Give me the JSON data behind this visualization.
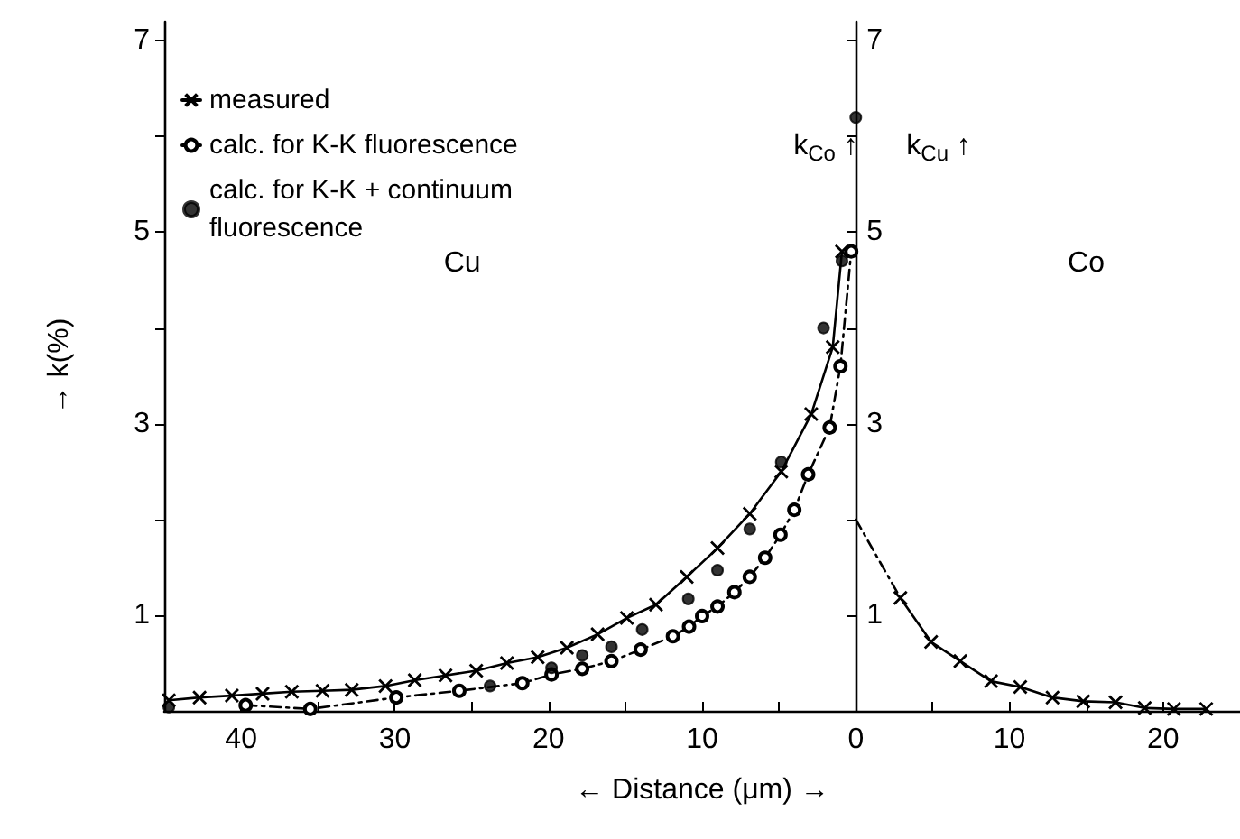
{
  "chart_data": {
    "type": "line",
    "xlabel": "← Distance (μm) →",
    "ylabel": "→ k(%)",
    "xlim": [
      45,
      -25
    ],
    "xticks": [
      {
        "value": 40,
        "label": "40"
      },
      {
        "value": 35,
        "label": null
      },
      {
        "value": 30,
        "label": "30"
      },
      {
        "value": 25,
        "label": null
      },
      {
        "value": 20,
        "label": "20"
      },
      {
        "value": 15,
        "label": null
      },
      {
        "value": 10,
        "label": "10"
      },
      {
        "value": 5,
        "label": null
      },
      {
        "value": 0,
        "label": "0"
      },
      {
        "value": -5,
        "label": null
      },
      {
        "value": -10,
        "label": "10"
      },
      {
        "value": -15,
        "label": null
      },
      {
        "value": -20,
        "label": "20"
      }
    ],
    "ylim": [
      0,
      7.2
    ],
    "yticks": [
      1,
      {
        "value": 2,
        "label": null
      },
      3,
      {
        "value": 4,
        "label": null
      },
      5,
      {
        "value": 6,
        "label": null
      },
      7
    ],
    "y2lim": [
      0,
      7.2
    ],
    "y2ticks": [
      1,
      {
        "value": 2,
        "label": null
      },
      3,
      {
        "value": 4,
        "label": null
      },
      5,
      {
        "value": 6,
        "label": null
      },
      7
    ],
    "annotations": [
      "Cu",
      "Co",
      "k$_{Co}$ ↑",
      "k$_{Cu}$ ↑"
    ],
    "legend": "top left",
    "grid": false,
    "series": [
      {
        "name": "measured",
        "marker": "cross",
        "line_style": "solid",
        "color": "#000000",
        "x": [
          44.7,
          42.7,
          40.6,
          38.6,
          36.7,
          34.7,
          32.8,
          30.6,
          28.7,
          26.7,
          24.7,
          22.7,
          20.7,
          18.8,
          16.8,
          14.9,
          13.0,
          11.0,
          9.0,
          6.9,
          4.85,
          2.9,
          1.5,
          0.9,
          0,
          -2.9,
          -4.9,
          -6.8,
          -8.8,
          -10.7,
          -12.8,
          -14.8,
          -16.9,
          -18.8,
          -20.7,
          -22.8
        ],
        "values": [
          0.11,
          0.14,
          0.16,
          0.18,
          0.2,
          0.21,
          0.22,
          0.26,
          0.32,
          0.37,
          0.42,
          0.5,
          0.56,
          0.66,
          0.8,
          0.97,
          1.11,
          1.4,
          1.7,
          2.06,
          2.5,
          3.1,
          3.8,
          4.8,
          null,
          1.18,
          0.72,
          0.52,
          0.31,
          0.25,
          0.14,
          0.1,
          0.09,
          0.03,
          0.02,
          0.02
        ]
      },
      {
        "name": "calc. for K-K fluorescence",
        "marker": "circle",
        "line_style": "dashed",
        "color": "#000000",
        "x": [
          39.7,
          35.5,
          29.9,
          25.8,
          21.7,
          19.8,
          17.8,
          15.9,
          14.0,
          11.9,
          10.85,
          10.0,
          9.0,
          7.9,
          6.9,
          5.9,
          4.9,
          4.0,
          3.1,
          1.7,
          1.0,
          0.3
        ],
        "values": [
          0.06,
          0.02,
          0.14,
          0.21,
          0.29,
          0.38,
          0.44,
          0.52,
          0.64,
          0.78,
          0.88,
          0.99,
          1.09,
          1.24,
          1.4,
          1.6,
          1.84,
          2.1,
          2.47,
          2.96,
          3.6,
          4.8
        ]
      },
      {
        "name": "calc. for K-K + continuum fluorescence",
        "type": "scatter",
        "marker": "circle",
        "color": "#000000",
        "x": [
          44.7,
          23.8,
          19.8,
          17.8,
          15.9,
          13.9,
          10.9,
          9.0,
          6.9,
          4.85,
          2.1,
          0.9,
          0
        ],
        "values": [
          0.04,
          0.26,
          0.45,
          0.58,
          0.67,
          0.85,
          1.17,
          1.47,
          1.9,
          2.6,
          4.0,
          4.7,
          6.2
        ]
      },
      {
        "marker": "none",
        "line_style": "dashed",
        "color": "#000000",
        "x": [
          0,
          -2.9
        ],
        "values": [
          2.0,
          1.18
        ]
      }
    ]
  }
}
